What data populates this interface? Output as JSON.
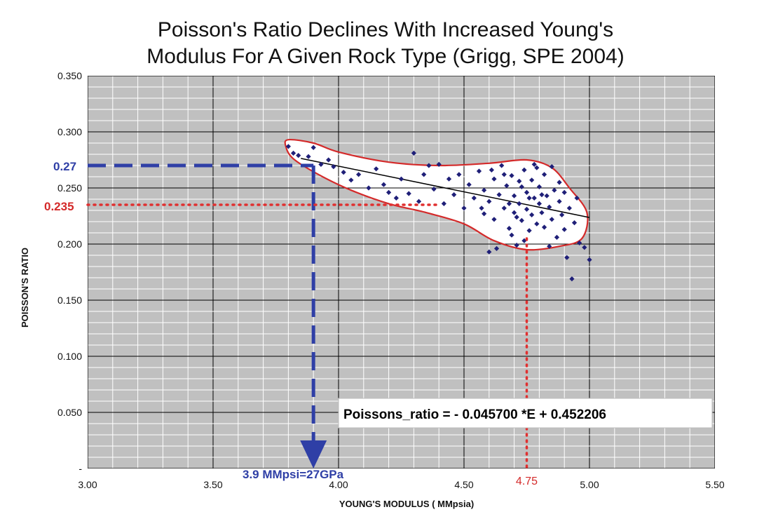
{
  "chart_data": {
    "type": "scatter",
    "title_lines": [
      "Poisson's Ratio Declines With Increased Young's",
      "Modulus For A Given Rock Type (Grigg, SPE 2004)"
    ],
    "xlabel": "YOUNG'S MODULUS ( MMpsia)",
    "ylabel": "POISSON'S RATIO",
    "xlim": [
      3.0,
      5.5
    ],
    "ylim": [
      0.0,
      0.35
    ],
    "x_ticks": [
      "3.00",
      "3.50",
      "4.00",
      "4.50",
      "5.00",
      "5.50"
    ],
    "y_ticks": [
      "-",
      "0.050",
      "0.100",
      "0.150",
      "0.200",
      "0.250",
      "0.300",
      "0.350"
    ],
    "grid": true,
    "series": [
      {
        "values": [
          [
            3.8,
            0.287
          ],
          [
            3.82,
            0.281
          ],
          [
            3.84,
            0.279
          ],
          [
            3.88,
            0.278
          ],
          [
            3.9,
            0.286
          ],
          [
            3.93,
            0.271
          ],
          [
            3.96,
            0.275
          ],
          [
            3.98,
            0.269
          ],
          [
            4.02,
            0.264
          ],
          [
            4.05,
            0.257
          ],
          [
            4.08,
            0.262
          ],
          [
            4.12,
            0.25
          ],
          [
            4.15,
            0.267
          ],
          [
            4.18,
            0.253
          ],
          [
            4.2,
            0.246
          ],
          [
            4.23,
            0.241
          ],
          [
            4.25,
            0.258
          ],
          [
            4.28,
            0.245
          ],
          [
            4.3,
            0.281
          ],
          [
            4.32,
            0.238
          ],
          [
            4.34,
            0.262
          ],
          [
            4.36,
            0.27
          ],
          [
            4.38,
            0.249
          ],
          [
            4.4,
            0.271
          ],
          [
            4.42,
            0.236
          ],
          [
            4.44,
            0.258
          ],
          [
            4.46,
            0.244
          ],
          [
            4.48,
            0.262
          ],
          [
            4.5,
            0.232
          ],
          [
            4.52,
            0.253
          ],
          [
            4.54,
            0.241
          ],
          [
            4.56,
            0.265
          ],
          [
            4.58,
            0.227
          ],
          [
            4.58,
            0.248
          ],
          [
            4.6,
            0.193
          ],
          [
            4.6,
            0.238
          ],
          [
            4.62,
            0.258
          ],
          [
            4.62,
            0.222
          ],
          [
            4.63,
            0.196
          ],
          [
            4.64,
            0.244
          ],
          [
            4.65,
            0.27
          ],
          [
            4.66,
            0.232
          ],
          [
            4.67,
            0.252
          ],
          [
            4.68,
            0.214
          ],
          [
            4.69,
            0.261
          ],
          [
            4.7,
            0.228
          ],
          [
            4.7,
            0.243
          ],
          [
            4.71,
            0.199
          ],
          [
            4.72,
            0.256
          ],
          [
            4.72,
            0.236
          ],
          [
            4.73,
            0.221
          ],
          [
            4.74,
            0.266
          ],
          [
            4.75,
            0.246
          ],
          [
            4.75,
            0.231
          ],
          [
            4.76,
            0.212
          ],
          [
            4.77,
            0.257
          ],
          [
            4.77,
            0.226
          ],
          [
            4.78,
            0.241
          ],
          [
            4.78,
            0.271
          ],
          [
            4.79,
            0.218
          ],
          [
            4.8,
            0.236
          ],
          [
            4.8,
            0.251
          ],
          [
            4.81,
            0.228
          ],
          [
            4.82,
            0.262
          ],
          [
            4.82,
            0.215
          ],
          [
            4.83,
            0.243
          ],
          [
            4.84,
            0.233
          ],
          [
            4.85,
            0.269
          ],
          [
            4.85,
            0.222
          ],
          [
            4.86,
            0.248
          ],
          [
            4.87,
            0.206
          ],
          [
            4.88,
            0.238
          ],
          [
            4.88,
            0.255
          ],
          [
            4.89,
            0.226
          ],
          [
            4.9,
            0.213
          ],
          [
            4.9,
            0.246
          ],
          [
            4.91,
            0.188
          ],
          [
            4.92,
            0.232
          ],
          [
            4.93,
            0.169
          ],
          [
            4.94,
            0.219
          ],
          [
            4.95,
            0.241
          ],
          [
            4.96,
            0.201
          ],
          [
            4.98,
            0.197
          ],
          [
            5.0,
            0.186
          ],
          [
            4.66,
            0.262
          ],
          [
            4.69,
            0.208
          ],
          [
            4.74,
            0.203
          ],
          [
            4.79,
            0.268
          ],
          [
            4.84,
            0.198
          ],
          [
            4.73,
            0.251
          ],
          [
            4.57,
            0.232
          ],
          [
            4.61,
            0.266
          ],
          [
            4.68,
            0.236
          ],
          [
            4.76,
            0.241
          ],
          [
            4.81,
            0.244
          ],
          [
            4.71,
            0.224
          ]
        ]
      }
    ],
    "trendline": {
      "x": [
        3.85,
        5.0
      ],
      "y": [
        0.2763,
        0.2237
      ]
    },
    "annotations": {
      "y_blue_label": "0.27",
      "y_red_label": "0.235",
      "x_blue_label": "3.9 MMpsi=27GPa",
      "x_red_label": "4.75",
      "equation": "Poissons_ratio = - 0.045700 *E + 0.452206",
      "y_blue_value": 0.27,
      "y_red_value": 0.235,
      "x_blue_value": 3.9,
      "x_red_value": 4.75
    },
    "colors": {
      "plot_bg": "#c0c0c0",
      "grid_minor": "#ffffff",
      "grid_major": "#000000",
      "marker": "#1f1f78",
      "envelope": "#d42a2a",
      "blue_guide": "#2f3fa6",
      "red_guide": "#e03030",
      "trend": "#000000"
    }
  }
}
